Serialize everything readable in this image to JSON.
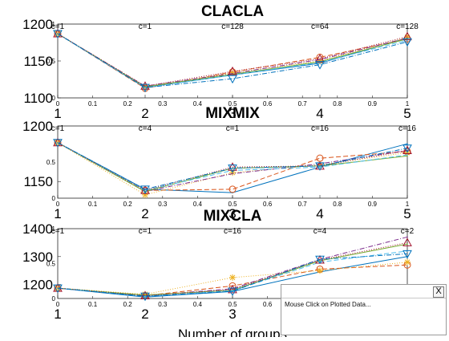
{
  "chart_data": [
    {
      "type": "line",
      "title": "CLACLA",
      "xlabel": "",
      "categories": [
        "1",
        "2",
        "3",
        "4",
        "5"
      ],
      "ylim": [
        1100,
        1200
      ],
      "y_ticks": [
        "1100",
        "1150",
        "1200"
      ],
      "inner_ticks_x": [
        "0",
        "0.1",
        "0.2",
        "0.3",
        "0.4",
        "0.5",
        "0.6",
        "0.7",
        "0.8",
        "0.9",
        "1"
      ],
      "inner_ticks_y": [
        "0",
        "0.5",
        "1"
      ],
      "annotations": [
        "c=1",
        "c=1",
        "c=128",
        "c=64",
        "c=128"
      ],
      "series": [
        {
          "color": "#0072BD",
          "dash": "",
          "marker": "none",
          "values": [
            1187,
            1114,
            1131,
            1147,
            1181
          ]
        },
        {
          "color": "#D95319",
          "dash": "6,3",
          "marker": "circle",
          "values": [
            1187,
            1113,
            1135,
            1155,
            1180
          ]
        },
        {
          "color": "#EDB120",
          "dash": "1,2",
          "marker": "star",
          "values": [
            1187,
            1115,
            1134,
            1150,
            1182
          ]
        },
        {
          "color": "#7E2F8E",
          "dash": "6,2,1,2",
          "marker": "none",
          "values": [
            1187,
            1116,
            1133,
            1152,
            1181
          ]
        },
        {
          "color": "#77AC30",
          "dash": "",
          "marker": "none",
          "values": [
            1187,
            1115,
            1132,
            1149,
            1180
          ]
        },
        {
          "color": "#4DBEEE",
          "dash": "6,3",
          "marker": "none",
          "values": [
            1187,
            1114,
            1131,
            1148,
            1178
          ]
        },
        {
          "color": "#A2142F",
          "dash": "1,2",
          "marker": "triangle",
          "values": [
            1187,
            1116,
            1136,
            1153,
            1183
          ]
        },
        {
          "color": "#0072BD",
          "dash": "6,2,1,2",
          "marker": "triangle-down",
          "values": [
            1187,
            1114,
            1126,
            1145,
            1176
          ]
        }
      ]
    },
    {
      "type": "line",
      "title": "MIXMIX",
      "xlabel": "",
      "categories": [
        "1",
        "2",
        "3",
        "4",
        "5"
      ],
      "ylim": [
        1135,
        1200
      ],
      "y_ticks": [
        "1150",
        "1200"
      ],
      "inner_ticks_x": [
        "0",
        "0.1",
        "0.2",
        "0.3",
        "0.4",
        "0.5",
        "0.6",
        "0.7",
        "0.8",
        "0.9",
        "1"
      ],
      "inner_ticks_y": [
        "0",
        "0.5"
      ],
      "annotations": [
        "c=1",
        "c=4",
        "c=1",
        "c=16",
        "c=16"
      ],
      "series": [
        {
          "color": "#0072BD",
          "dash": "",
          "marker": "none",
          "values": [
            1185,
            1143,
            1140,
            1163,
            1184
          ]
        },
        {
          "color": "#D95319",
          "dash": "6,3",
          "marker": "circle",
          "values": [
            1185,
            1142,
            1143,
            1171,
            1177
          ]
        },
        {
          "color": "#EDB120",
          "dash": "1,2",
          "marker": "star",
          "values": [
            1185,
            1138,
            1158,
            1165,
            1176
          ]
        },
        {
          "color": "#7E2F8E",
          "dash": "6,2,1,2",
          "marker": "none",
          "values": [
            1185,
            1141,
            1157,
            1166,
            1178
          ]
        },
        {
          "color": "#77AC30",
          "dash": "",
          "marker": "none",
          "values": [
            1185,
            1141,
            1162,
            1164,
            1173
          ]
        },
        {
          "color": "#4DBEEE",
          "dash": "6,3",
          "marker": "none",
          "values": [
            1185,
            1142,
            1160,
            1163,
            1174
          ]
        },
        {
          "color": "#A2142F",
          "dash": "1,2",
          "marker": "triangle",
          "values": [
            1185,
            1142,
            1163,
            1164,
            1178
          ]
        },
        {
          "color": "#0072BD",
          "dash": "6,2,1,2",
          "marker": "triangle-down",
          "values": [
            1185,
            1143,
            1162,
            1164,
            1180
          ]
        }
      ]
    },
    {
      "type": "line",
      "title": "MIXCLA",
      "xlabel": "Number of groups",
      "categories": [
        "1",
        "2",
        "3",
        "4",
        "5"
      ],
      "ylim": [
        1150,
        1400
      ],
      "y_ticks": [
        "1200",
        "1300",
        "1400"
      ],
      "inner_ticks_x": [
        "0",
        "0.1",
        "0.2",
        "0.3",
        "0.4",
        "0.5",
        "0.6",
        "0.7",
        "0.8",
        "0.9",
        "1"
      ],
      "inner_ticks_y": [
        "0",
        "0.5",
        "1"
      ],
      "annotations": [
        "c=1",
        "c=1",
        "c=16",
        "c=4",
        "c=2"
      ],
      "series": [
        {
          "color": "#0072BD",
          "dash": "",
          "marker": "none",
          "values": [
            1187,
            1155,
            1175,
            1245,
            1300
          ]
        },
        {
          "color": "#D95319",
          "dash": "6,3",
          "marker": "circle",
          "values": [
            1187,
            1160,
            1195,
            1255,
            1270
          ]
        },
        {
          "color": "#EDB120",
          "dash": "1,2",
          "marker": "star",
          "values": [
            1187,
            1165,
            1225,
            1250,
            1280
          ]
        },
        {
          "color": "#7E2F8E",
          "dash": "6,2,1,2",
          "marker": "none",
          "values": [
            1187,
            1160,
            1185,
            1290,
            1370
          ]
        },
        {
          "color": "#77AC30",
          "dash": "",
          "marker": "none",
          "values": [
            1187,
            1162,
            1180,
            1285,
            1345
          ]
        },
        {
          "color": "#4DBEEE",
          "dash": "6,3",
          "marker": "none",
          "values": [
            1187,
            1158,
            1178,
            1280,
            1320
          ]
        },
        {
          "color": "#A2142F",
          "dash": "1,2",
          "marker": "triangle",
          "values": [
            1187,
            1160,
            1182,
            1288,
            1350
          ]
        },
        {
          "color": "#0072BD",
          "dash": "6,2,1,2",
          "marker": "triangle-down",
          "values": [
            1187,
            1158,
            1176,
            1290,
            1310
          ]
        }
      ]
    }
  ],
  "popup": {
    "close_label": "X",
    "message": "Mouse Click on Plotted Data..."
  }
}
